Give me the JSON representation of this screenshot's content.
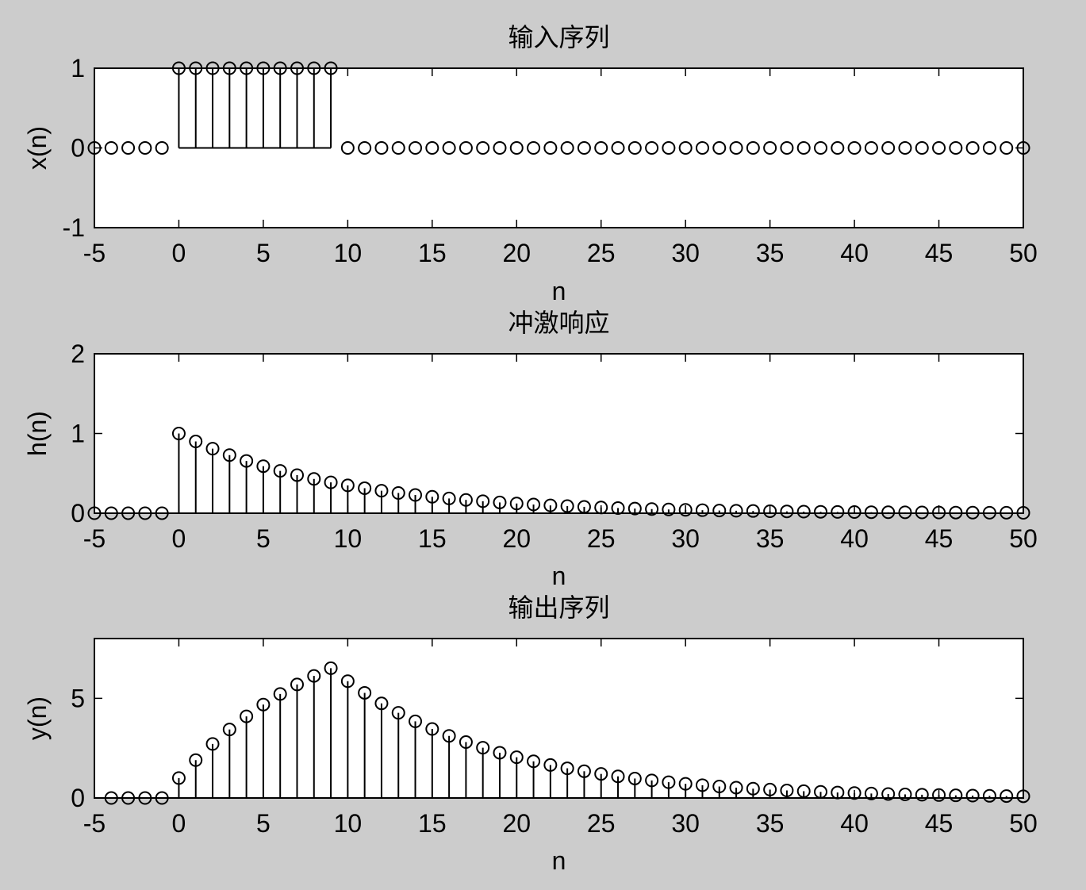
{
  "chart_data": [
    {
      "type": "stem",
      "title": "输入序列",
      "xlabel": "n",
      "ylabel": "x(n)",
      "xlim": [
        -5,
        50
      ],
      "ylim": [
        -1,
        1
      ],
      "xticks": [
        -5,
        0,
        5,
        10,
        15,
        20,
        25,
        30,
        35,
        40,
        45,
        50
      ],
      "yticks": [
        -1,
        0,
        1
      ],
      "x": [
        -5,
        -4,
        -3,
        -2,
        -1,
        0,
        1,
        2,
        3,
        4,
        5,
        6,
        7,
        8,
        9,
        10,
        11,
        12,
        13,
        14,
        15,
        16,
        17,
        18,
        19,
        20,
        21,
        22,
        23,
        24,
        25,
        26,
        27,
        28,
        29,
        30,
        31,
        32,
        33,
        34,
        35,
        36,
        37,
        38,
        39,
        40,
        41,
        42,
        43,
        44,
        45,
        46,
        47,
        48,
        49,
        50
      ],
      "values": [
        0,
        0,
        0,
        0,
        0,
        1,
        1,
        1,
        1,
        1,
        1,
        1,
        1,
        1,
        1,
        0,
        0,
        0,
        0,
        0,
        0,
        0,
        0,
        0,
        0,
        0,
        0,
        0,
        0,
        0,
        0,
        0,
        0,
        0,
        0,
        0,
        0,
        0,
        0,
        0,
        0,
        0,
        0,
        0,
        0,
        0,
        0,
        0,
        0,
        0,
        0,
        0,
        0,
        0,
        0,
        0
      ]
    },
    {
      "type": "stem",
      "title": "冲激响应",
      "xlabel": "n",
      "ylabel": "h(n)",
      "xlim": [
        -5,
        50
      ],
      "ylim": [
        0,
        2
      ],
      "xticks": [
        -5,
        0,
        5,
        10,
        15,
        20,
        25,
        30,
        35,
        40,
        45,
        50
      ],
      "yticks": [
        0,
        1,
        2
      ],
      "x": [
        -5,
        -4,
        -3,
        -2,
        -1,
        0,
        1,
        2,
        3,
        4,
        5,
        6,
        7,
        8,
        9,
        10,
        11,
        12,
        13,
        14,
        15,
        16,
        17,
        18,
        19,
        20,
        21,
        22,
        23,
        24,
        25,
        26,
        27,
        28,
        29,
        30,
        31,
        32,
        33,
        34,
        35,
        36,
        37,
        38,
        39,
        40,
        41,
        42,
        43,
        44,
        45,
        46,
        47,
        48,
        49,
        50
      ],
      "values": [
        0,
        0,
        0,
        0,
        0,
        1,
        0.9,
        0.81,
        0.729,
        0.656,
        0.59,
        0.531,
        0.478,
        0.43,
        0.387,
        0.349,
        0.314,
        0.282,
        0.254,
        0.229,
        0.206,
        0.185,
        0.167,
        0.15,
        0.135,
        0.122,
        0.109,
        0.098,
        0.089,
        0.08,
        0.072,
        0.065,
        0.058,
        0.052,
        0.047,
        0.042,
        0.038,
        0.034,
        0.031,
        0.028,
        0.025,
        0.023,
        0.02,
        0.018,
        0.016,
        0.015,
        0.013,
        0.012,
        0.011,
        0.01,
        0.009,
        0.008,
        0.007,
        0.006,
        0.006,
        0.005
      ]
    },
    {
      "type": "stem",
      "title": "输出序列",
      "xlabel": "n",
      "ylabel": "y(n)",
      "xlim": [
        -5,
        50
      ],
      "ylim": [
        0,
        8
      ],
      "xticks": [
        -5,
        0,
        5,
        10,
        15,
        20,
        25,
        30,
        35,
        40,
        45,
        50
      ],
      "yticks": [
        0,
        5
      ],
      "x": [
        -4,
        -3,
        -2,
        -1,
        0,
        1,
        2,
        3,
        4,
        5,
        6,
        7,
        8,
        9,
        10,
        11,
        12,
        13,
        14,
        15,
        16,
        17,
        18,
        19,
        20,
        21,
        22,
        23,
        24,
        25,
        26,
        27,
        28,
        29,
        30,
        31,
        32,
        33,
        34,
        35,
        36,
        37,
        38,
        39,
        40,
        41,
        42,
        43,
        44,
        45,
        46,
        47,
        48,
        49,
        50
      ],
      "values": [
        0,
        0,
        0,
        0,
        1,
        1.9,
        2.71,
        3.439,
        4.095,
        4.686,
        5.217,
        5.695,
        6.126,
        6.513,
        5.862,
        5.276,
        4.748,
        4.273,
        3.846,
        3.461,
        3.115,
        2.804,
        2.523,
        2.271,
        2.044,
        1.839,
        1.655,
        1.49,
        1.341,
        1.207,
        1.086,
        0.977,
        0.88,
        0.792,
        0.712,
        0.641,
        0.577,
        0.519,
        0.467,
        0.421,
        0.379,
        0.341,
        0.307,
        0.276,
        0.248,
        0.224,
        0.201,
        0.181,
        0.163,
        0.147,
        0.132,
        0.119,
        0.107,
        0.096,
        0.087
      ]
    }
  ]
}
